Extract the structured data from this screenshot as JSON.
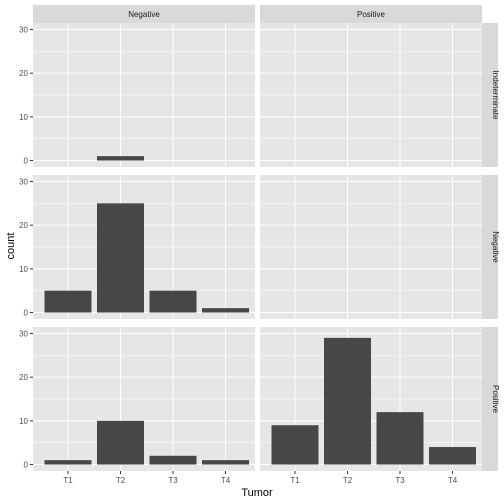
{
  "chart_data": {
    "type": "bar",
    "xlabel": "Tumor",
    "ylabel": "count",
    "categories": [
      "T1",
      "T2",
      "T3",
      "T4"
    ],
    "ylim": [
      0,
      30
    ],
    "yticks": [
      0,
      10,
      20,
      30
    ],
    "col_facets": [
      "Negative",
      "Positive"
    ],
    "row_facets": [
      "Indeterminate",
      "Negative",
      "Positive"
    ],
    "panels": [
      {
        "row": "Indeterminate",
        "col": "Negative",
        "values": [
          0,
          1,
          0,
          0
        ]
      },
      {
        "row": "Indeterminate",
        "col": "Positive",
        "values": [
          0,
          0,
          0,
          0
        ]
      },
      {
        "row": "Negative",
        "col": "Negative",
        "values": [
          5,
          25,
          5,
          1
        ]
      },
      {
        "row": "Negative",
        "col": "Positive",
        "values": [
          0,
          0,
          0,
          0
        ]
      },
      {
        "row": "Positive",
        "col": "Negative",
        "values": [
          1,
          10,
          2,
          1
        ]
      },
      {
        "row": "Positive",
        "col": "Positive",
        "values": [
          9,
          29,
          12,
          4
        ]
      }
    ],
    "grid": true,
    "legend": "none"
  },
  "colors": {
    "panel_bg": "#e6e6e6",
    "grid": "#ffffff",
    "bar": "#474747",
    "strip_bg": "#d9d9d9"
  }
}
